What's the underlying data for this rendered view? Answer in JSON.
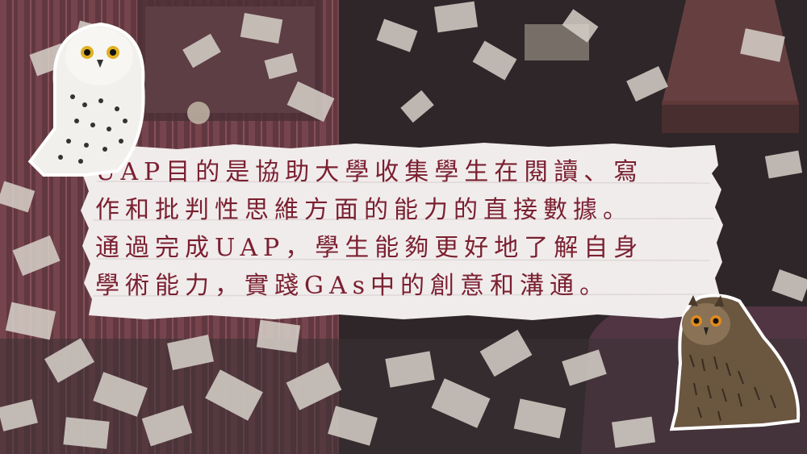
{
  "slide": {
    "lines": [
      "UAP目的是協助大學收集學生在閱讀、寫",
      "作和批判性思維方面的能力的直接數據。",
      "通過完成UAP，學生能夠更好地了解自身",
      "學術能力，實踐GAs中的創意和溝通。"
    ]
  },
  "colors": {
    "text": "#7a2030",
    "panel": "#f1ecec"
  }
}
